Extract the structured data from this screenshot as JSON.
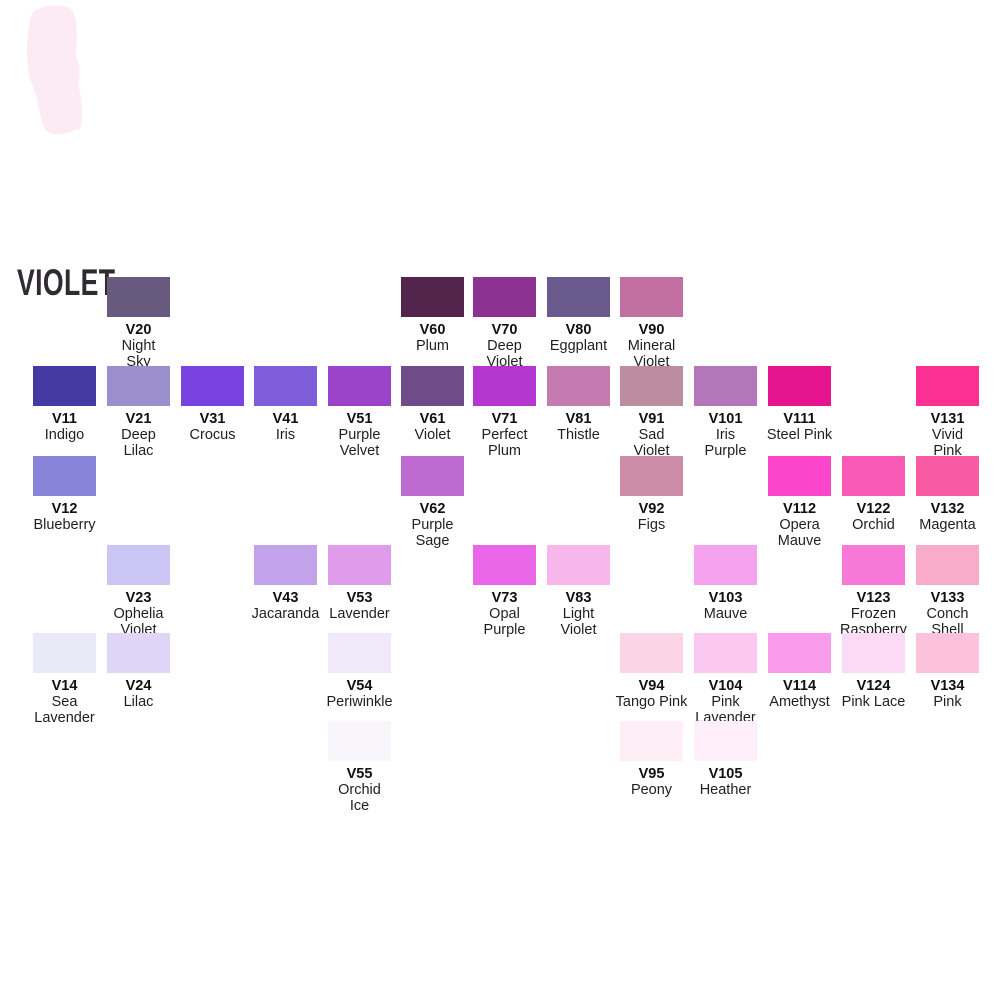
{
  "title": {
    "text": "VIOLET",
    "color": "#2e2b33"
  },
  "decoration": {
    "marker_stroke_color": "#fceaf5"
  },
  "chart_data": {
    "type": "table",
    "title": "VIOLET",
    "description": "Violet family marker color swatch chart: 42 labeled color chips arranged in a 13-column by 6-row grid",
    "grid": {
      "columns": 13,
      "rows": 6
    },
    "swatches": [
      {
        "code": "V20",
        "name": "Night\nSky",
        "color": "#675a7e",
        "row": 0,
        "col": 1
      },
      {
        "code": "V60",
        "name": "Plum",
        "color": "#53244c",
        "row": 0,
        "col": 5
      },
      {
        "code": "V70",
        "name": "Deep\nViolet",
        "color": "#8c3392",
        "row": 0,
        "col": 6
      },
      {
        "code": "V80",
        "name": "Eggplant",
        "color": "#6a5a8d",
        "row": 0,
        "col": 7
      },
      {
        "code": "V90",
        "name": "Mineral\nViolet",
        "color": "#c06fa0",
        "row": 0,
        "col": 8
      },
      {
        "code": "V11",
        "name": "Indigo",
        "color": "#433aa3",
        "row": 1,
        "col": 0
      },
      {
        "code": "V21",
        "name": "Deep\nLilac",
        "color": "#9c8fd0",
        "row": 1,
        "col": 1
      },
      {
        "code": "V31",
        "name": "Crocus",
        "color": "#7a42e0",
        "row": 1,
        "col": 2
      },
      {
        "code": "V41",
        "name": "Iris",
        "color": "#7e5edb",
        "row": 1,
        "col": 3
      },
      {
        "code": "V51",
        "name": "Purple\nVelvet",
        "color": "#9a42c8",
        "row": 1,
        "col": 4
      },
      {
        "code": "V61",
        "name": "Violet",
        "color": "#6f4b89",
        "row": 1,
        "col": 5
      },
      {
        "code": "V71",
        "name": "Perfect\nPlum",
        "color": "#b437d2",
        "row": 1,
        "col": 6
      },
      {
        "code": "V81",
        "name": "Thistle",
        "color": "#c47bb2",
        "row": 1,
        "col": 7
      },
      {
        "code": "V91",
        "name": "Sad\nViolet",
        "color": "#bc8da1",
        "row": 1,
        "col": 8
      },
      {
        "code": "V101",
        "name": "Iris\nPurple",
        "color": "#b377b9",
        "row": 1,
        "col": 9
      },
      {
        "code": "V111",
        "name": "Steel Pink",
        "color": "#e6138f",
        "row": 1,
        "col": 10
      },
      {
        "code": "V131",
        "name": "Vivid\nPink",
        "color": "#fc3093",
        "row": 1,
        "col": 12
      },
      {
        "code": "V12",
        "name": "Blueberry",
        "color": "#8784da",
        "row": 2,
        "col": 0
      },
      {
        "code": "V62",
        "name": "Purple\nSage",
        "color": "#bd6bd0",
        "row": 2,
        "col": 5
      },
      {
        "code": "V92",
        "name": "Figs",
        "color": "#cc8ba6",
        "row": 2,
        "col": 8
      },
      {
        "code": "V112",
        "name": "Opera\nMauve",
        "color": "#fb45ca",
        "row": 2,
        "col": 10
      },
      {
        "code": "V122",
        "name": "Orchid",
        "color": "#f859b4",
        "row": 2,
        "col": 11
      },
      {
        "code": "V132",
        "name": "Magenta",
        "color": "#f95aa4",
        "row": 2,
        "col": 12
      },
      {
        "code": "V23",
        "name": "Ophelia\nViolet",
        "color": "#cac5f3",
        "row": 3,
        "col": 1
      },
      {
        "code": "V43",
        "name": "Jacaranda",
        "color": "#c3a2ec",
        "row": 3,
        "col": 3
      },
      {
        "code": "V53",
        "name": "Lavender",
        "color": "#de9cea",
        "row": 3,
        "col": 4
      },
      {
        "code": "V73",
        "name": "Opal\nPurple",
        "color": "#ea66e8",
        "row": 3,
        "col": 6
      },
      {
        "code": "V83",
        "name": "Light\nViolet",
        "color": "#f7b7ec",
        "row": 3,
        "col": 7
      },
      {
        "code": "V103",
        "name": "Mauve",
        "color": "#f5a3ef",
        "row": 3,
        "col": 9
      },
      {
        "code": "V123",
        "name": "Frozen\nRaspberry",
        "color": "#f878d7",
        "row": 3,
        "col": 11
      },
      {
        "code": "V133",
        "name": "Conch\nShell",
        "color": "#f9abca",
        "row": 3,
        "col": 12
      },
      {
        "code": "V14",
        "name": "Sea\nLavender",
        "color": "#e9e9f8",
        "row": 4,
        "col": 0
      },
      {
        "code": "V24",
        "name": "Lilac",
        "color": "#ded5f7",
        "row": 4,
        "col": 1
      },
      {
        "code": "V54",
        "name": "Periwinkle",
        "color": "#efe9f9",
        "row": 4,
        "col": 4
      },
      {
        "code": "V94",
        "name": "Tango Pink",
        "color": "#fbd5e5",
        "row": 4,
        "col": 8
      },
      {
        "code": "V104",
        "name": "Pink\nLavender",
        "color": "#fac8f1",
        "row": 4,
        "col": 9
      },
      {
        "code": "V114",
        "name": "Amethyst",
        "color": "#f89bec",
        "row": 4,
        "col": 10
      },
      {
        "code": "V124",
        "name": "Pink Lace",
        "color": "#fcdaf6",
        "row": 4,
        "col": 11
      },
      {
        "code": "V134",
        "name": "Pink",
        "color": "#fcc2dc",
        "row": 4,
        "col": 12
      },
      {
        "code": "V55",
        "name": "Orchid\nIce",
        "color": "#f8f5fb",
        "row": 5,
        "col": 4
      },
      {
        "code": "V95",
        "name": "Peony",
        "color": "#feeff6",
        "row": 5,
        "col": 8
      },
      {
        "code": "V105",
        "name": "Heather",
        "color": "#feeffb",
        "row": 5,
        "col": 9
      }
    ]
  }
}
